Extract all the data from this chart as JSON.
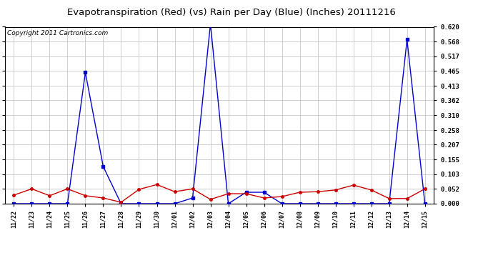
{
  "title": "Evapotranspiration (Red) (vs) Rain per Day (Blue) (Inches) 20111216",
  "copyright": "Copyright 2011 Cartronics.com",
  "x_labels": [
    "11/22",
    "11/23",
    "11/24",
    "11/25",
    "11/26",
    "11/27",
    "11/28",
    "11/29",
    "11/30",
    "12/01",
    "12/02",
    "12/03",
    "12/04",
    "12/05",
    "12/06",
    "12/07",
    "12/08",
    "12/09",
    "12/10",
    "12/11",
    "12/12",
    "12/13",
    "12/14",
    "12/15"
  ],
  "blue_rain": [
    0.0,
    0.0,
    0.0,
    0.0,
    0.46,
    0.13,
    0.0,
    0.0,
    0.0,
    0.0,
    0.02,
    0.63,
    0.0,
    0.04,
    0.04,
    0.0,
    0.0,
    0.0,
    0.0,
    0.0,
    0.0,
    0.0,
    0.575,
    0.0
  ],
  "red_et": [
    0.03,
    0.052,
    0.028,
    0.052,
    0.028,
    0.02,
    0.005,
    0.05,
    0.067,
    0.042,
    0.052,
    0.015,
    0.035,
    0.035,
    0.02,
    0.025,
    0.04,
    0.042,
    0.048,
    0.065,
    0.048,
    0.018,
    0.018,
    0.052
  ],
  "ylim": [
    0.0,
    0.62
  ],
  "yticks": [
    0.0,
    0.052,
    0.103,
    0.155,
    0.207,
    0.258,
    0.31,
    0.362,
    0.413,
    0.465,
    0.517,
    0.568,
    0.62
  ],
  "blue_color": "#0000cc",
  "red_color": "#cc0000",
  "bg_color": "#ffffff",
  "grid_color": "#bbbbbb",
  "title_fontsize": 9.5,
  "copyright_fontsize": 6.5
}
